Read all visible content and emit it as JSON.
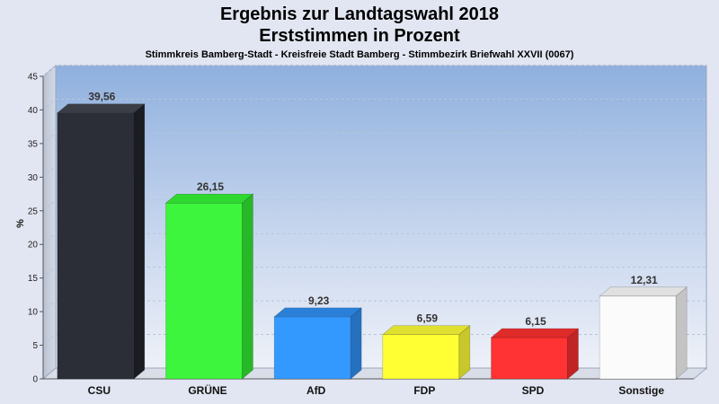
{
  "chart_data": {
    "type": "bar",
    "title_line1": "Ergebnis zur Landtagswahl 2018",
    "title_line2": "Erststimmen in Prozent",
    "subtitle": "Stimmkreis Bamberg-Stadt - Kreisfreie Stadt Bamberg - Stimmbezirk Briefwahl XXVII (0067)",
    "ylabel": "%",
    "xlabel": "",
    "ylim": [
      0,
      45
    ],
    "yticks": [
      "0",
      "5",
      "10",
      "15",
      "20",
      "25",
      "30",
      "35",
      "40",
      "45"
    ],
    "grid": true,
    "categories": [
      "CSU",
      "GRÜNE",
      "AfD",
      "FDP",
      "SPD",
      "Sonstige"
    ],
    "values": [
      39.56,
      26.15,
      9.23,
      6.59,
      6.15,
      12.31
    ],
    "value_labels": [
      "39,56",
      "26,15",
      "9,23",
      "6,59",
      "6,15",
      "12,31"
    ],
    "colors": [
      "#2b2e36",
      "#3cf53c",
      "#3399ff",
      "#ffff33",
      "#ff3333",
      "#fbfbfb"
    ],
    "side_colors": [
      "#1a1c22",
      "#27b827",
      "#2670c0",
      "#c8c82a",
      "#c02424",
      "#c4c4c4"
    ],
    "top_colors": [
      "#3a3d46",
      "#2fd82f",
      "#2a80d8",
      "#e0e030",
      "#e02b2b",
      "#e0e0e0"
    ]
  }
}
